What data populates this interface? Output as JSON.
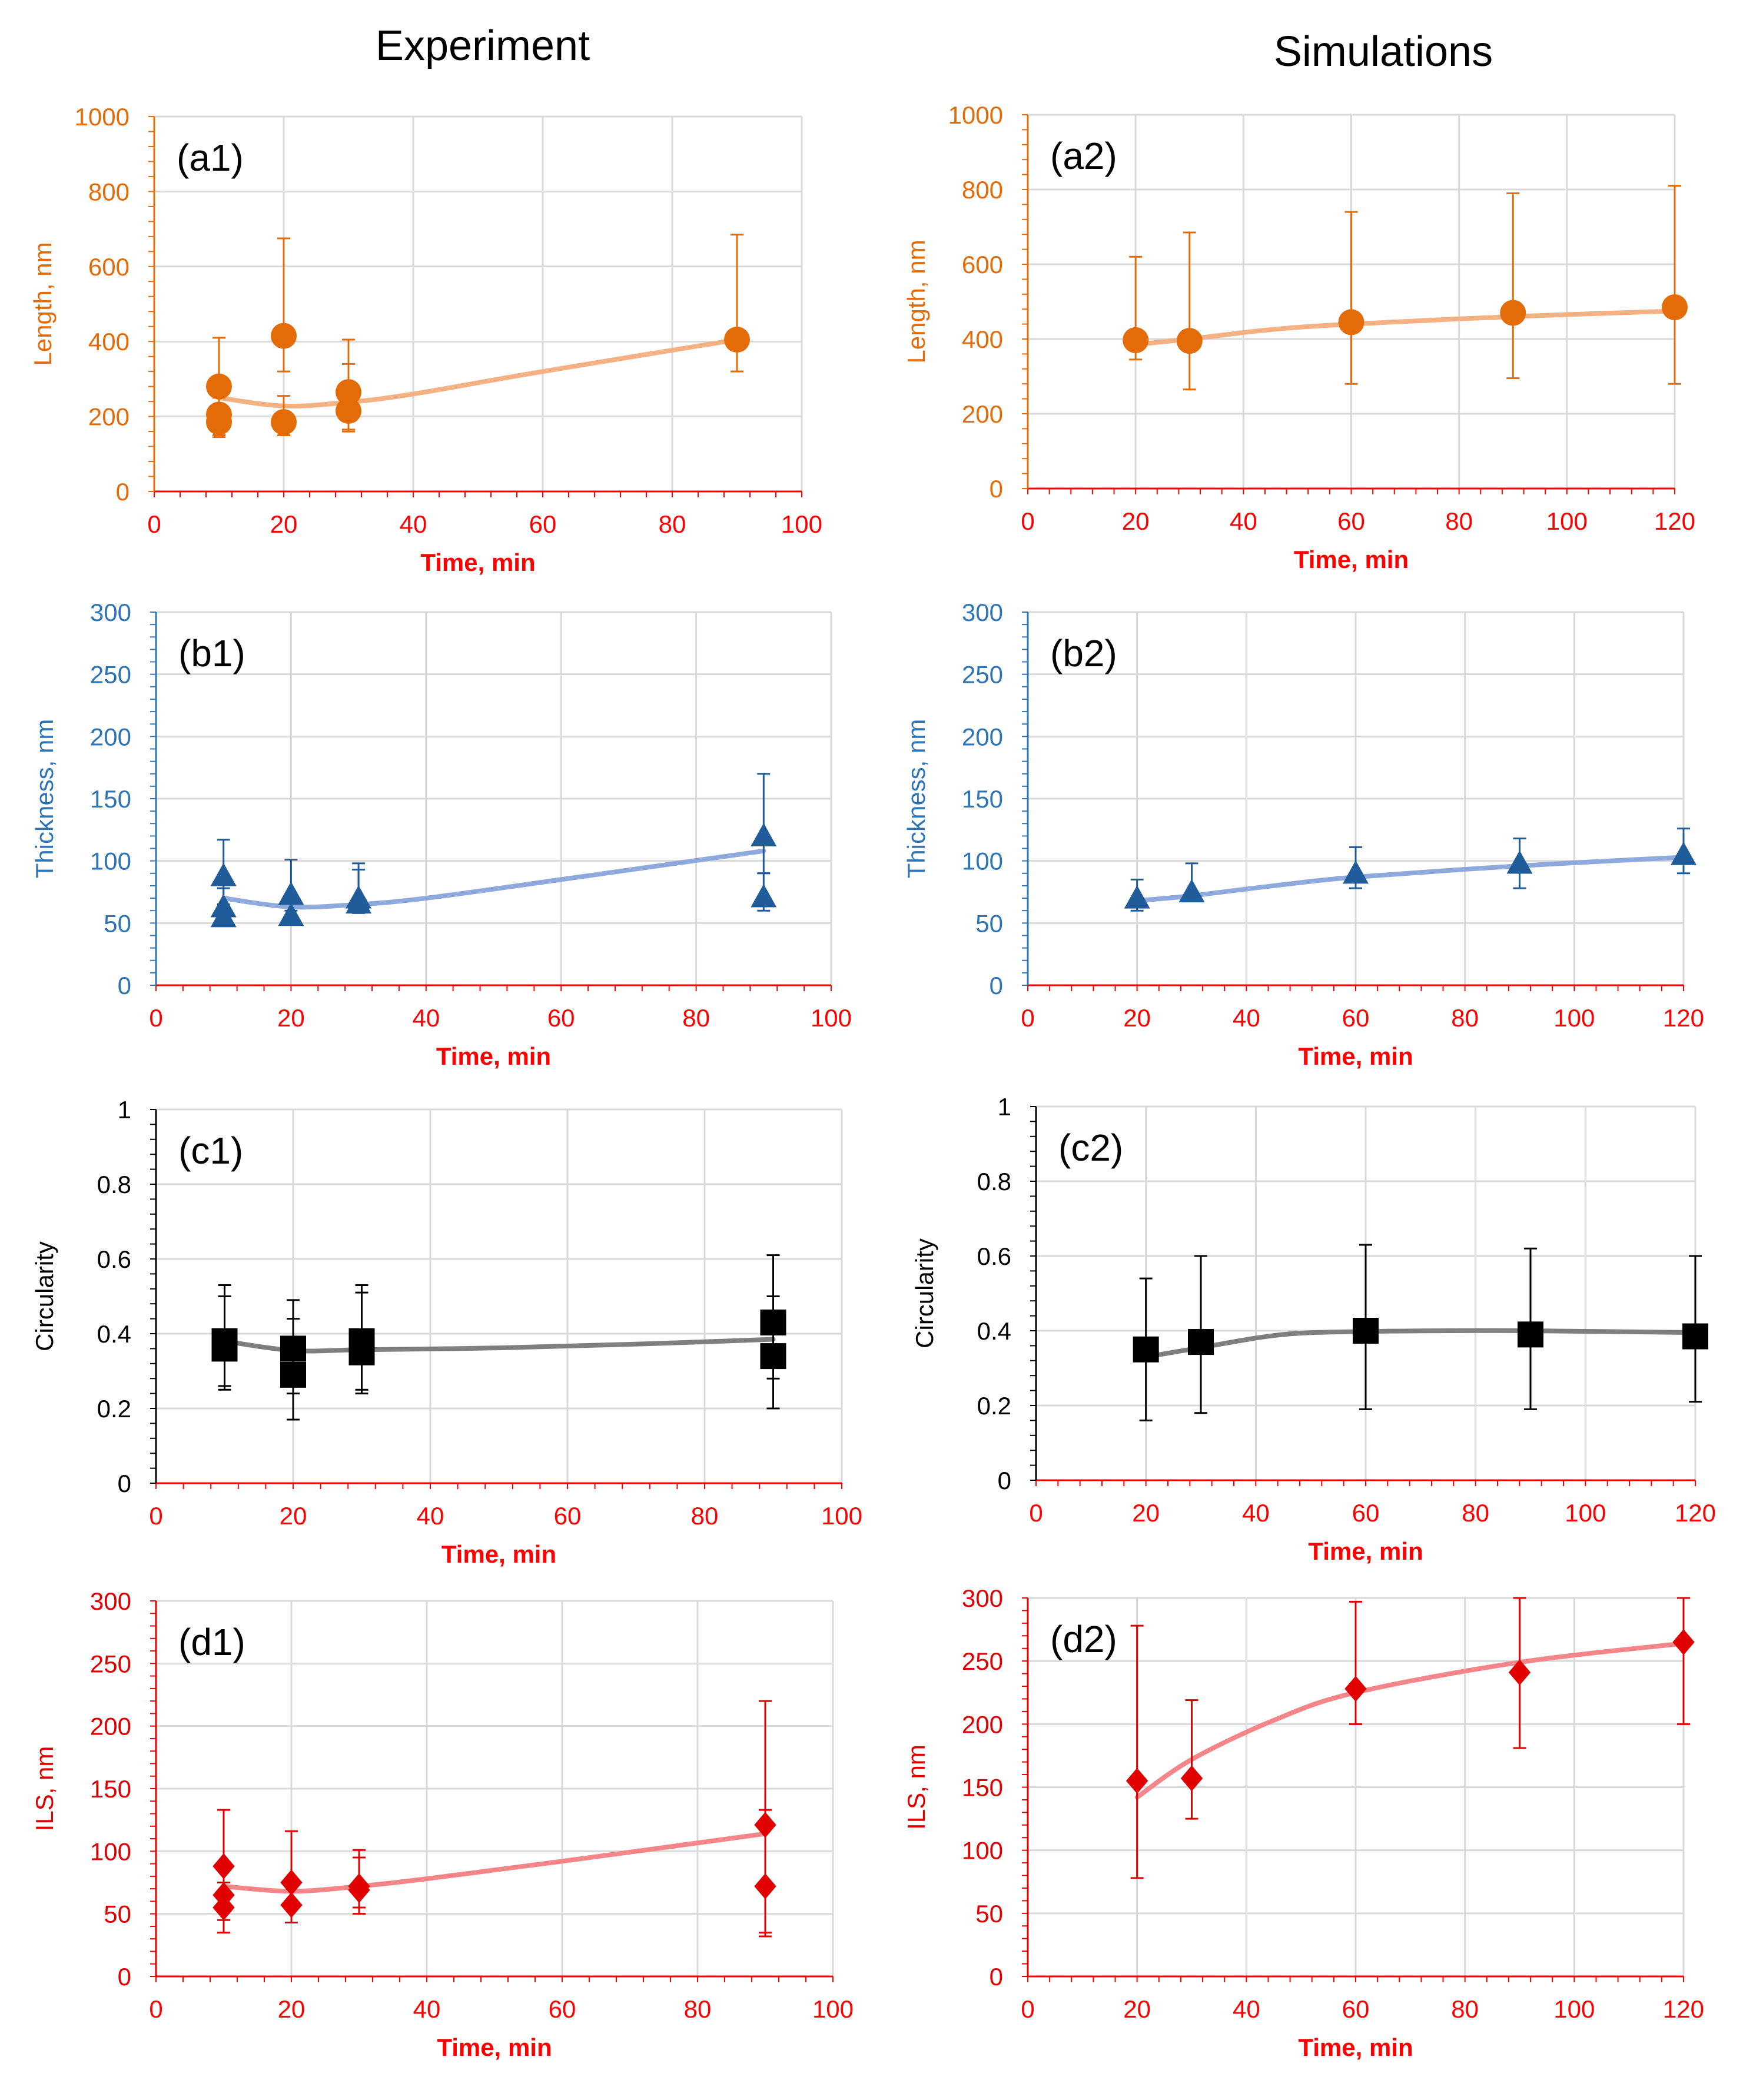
{
  "headers": {
    "left": "Experiment",
    "right": "Simulations"
  },
  "chart_data": [
    {
      "id": "a1",
      "type": "scatter",
      "panel_label": "(a1)",
      "xlabel": "Time, min",
      "ylabel": "Length, nm",
      "xlim": [
        0,
        100
      ],
      "xticks": [
        0,
        20,
        40,
        60,
        80,
        100
      ],
      "ylim": [
        0,
        1000
      ],
      "yticks": [
        0,
        200,
        400,
        600,
        800,
        1000
      ],
      "color": "#E36C09",
      "line_color": "#F4B183",
      "axis_color": "#FF0000",
      "ylabel_color": "#E36C09",
      "ytick_color": "#E36C09",
      "marker": "circle",
      "points": [
        {
          "x": 10,
          "y": 280,
          "lo": 150,
          "hi": 410
        },
        {
          "x": 10,
          "y": 205,
          "lo": 160,
          "hi": 250
        },
        {
          "x": 10,
          "y": 185,
          "lo": 145,
          "hi": 225
        },
        {
          "x": 20,
          "y": 415,
          "lo": 320,
          "hi": 675
        },
        {
          "x": 20,
          "y": 185,
          "lo": 150,
          "hi": 255
        },
        {
          "x": 30,
          "y": 265,
          "lo": 165,
          "hi": 405
        },
        {
          "x": 30,
          "y": 215,
          "lo": 160,
          "hi": 340
        },
        {
          "x": 90,
          "y": 405,
          "lo": 320,
          "hi": 685
        }
      ],
      "trend": {
        "x": [
          10,
          20,
          30,
          40,
          60,
          90
        ],
        "y": [
          250,
          228,
          238,
          260,
          320,
          405
        ]
      }
    },
    {
      "id": "a2",
      "type": "scatter",
      "panel_label": "(a2)",
      "xlabel": "Time, min",
      "ylabel": "Length, nm",
      "xlim": [
        0,
        120
      ],
      "xticks": [
        0,
        20,
        40,
        60,
        80,
        100,
        120
      ],
      "ylim": [
        0,
        1000
      ],
      "yticks": [
        0,
        200,
        400,
        600,
        800,
        1000
      ],
      "color": "#E36C09",
      "line_color": "#F4B183",
      "axis_color": "#FF0000",
      "ylabel_color": "#E36C09",
      "ytick_color": "#E36C09",
      "marker": "circle",
      "points": [
        {
          "x": 20,
          "y": 397,
          "lo": 345,
          "hi": 620
        },
        {
          "x": 30,
          "y": 395,
          "lo": 265,
          "hi": 685
        },
        {
          "x": 60,
          "y": 445,
          "lo": 280,
          "hi": 740
        },
        {
          "x": 90,
          "y": 470,
          "lo": 295,
          "hi": 790
        },
        {
          "x": 120,
          "y": 485,
          "lo": 280,
          "hi": 810
        }
      ],
      "trend": {
        "x": [
          20,
          30,
          45,
          60,
          90,
          120
        ],
        "y": [
          385,
          400,
          425,
          440,
          460,
          475
        ]
      }
    },
    {
      "id": "b1",
      "type": "scatter",
      "panel_label": "(b1)",
      "xlabel": "Time, min",
      "ylabel": "Thickness, nm",
      "xlim": [
        0,
        100
      ],
      "xticks": [
        0,
        20,
        40,
        60,
        80,
        100
      ],
      "ylim": [
        0,
        300
      ],
      "yticks": [
        0,
        50,
        100,
        150,
        200,
        250,
        300
      ],
      "color": "#1F5C99",
      "line_color": "#8EA9DB",
      "axis_color": "#FF0000",
      "ylabel_color": "#2E75B6",
      "ytick_color": "#2E75B6",
      "marker": "triangle",
      "points": [
        {
          "x": 10,
          "y": 88,
          "lo": 60,
          "hi": 117
        },
        {
          "x": 10,
          "y": 63,
          "lo": 52,
          "hi": 78
        },
        {
          "x": 10,
          "y": 55,
          "lo": 48,
          "hi": 65
        },
        {
          "x": 20,
          "y": 73,
          "lo": 60,
          "hi": 101
        },
        {
          "x": 20,
          "y": 56,
          "lo": 50,
          "hi": 66
        },
        {
          "x": 30,
          "y": 70,
          "lo": 58,
          "hi": 98
        },
        {
          "x": 30,
          "y": 66,
          "lo": 60,
          "hi": 93
        },
        {
          "x": 90,
          "y": 120,
          "lo": 90,
          "hi": 170
        },
        {
          "x": 90,
          "y": 71,
          "lo": 60,
          "hi": 90
        }
      ],
      "trend": {
        "x": [
          10,
          20,
          30,
          40,
          60,
          90
        ],
        "y": [
          70,
          63,
          65,
          70,
          85,
          108
        ]
      }
    },
    {
      "id": "b2",
      "type": "scatter",
      "panel_label": "(b2)",
      "xlabel": "Time, min",
      "ylabel": "Thickness, nm",
      "xlim": [
        0,
        120
      ],
      "xticks": [
        0,
        20,
        40,
        60,
        80,
        100,
        120
      ],
      "ylim": [
        0,
        300
      ],
      "yticks": [
        0,
        50,
        100,
        150,
        200,
        250,
        300
      ],
      "color": "#1F5C99",
      "line_color": "#8EA9DB",
      "axis_color": "#FF0000",
      "ylabel_color": "#2E75B6",
      "ytick_color": "#2E75B6",
      "marker": "triangle",
      "points": [
        {
          "x": 20,
          "y": 70,
          "lo": 60,
          "hi": 85
        },
        {
          "x": 30,
          "y": 75,
          "lo": 68,
          "hi": 98
        },
        {
          "x": 60,
          "y": 90,
          "lo": 78,
          "hi": 111
        },
        {
          "x": 90,
          "y": 98,
          "lo": 78,
          "hi": 118
        },
        {
          "x": 120,
          "y": 105,
          "lo": 90,
          "hi": 126
        }
      ],
      "trend": {
        "x": [
          20,
          30,
          45,
          60,
          90,
          120
        ],
        "y": [
          68,
          72,
          80,
          87,
          96,
          103
        ]
      }
    },
    {
      "id": "c1",
      "type": "scatter",
      "panel_label": "(c1)",
      "xlabel": "Time, min",
      "ylabel": "Circularity",
      "xlim": [
        0,
        100
      ],
      "xticks": [
        0,
        20,
        40,
        60,
        80,
        100
      ],
      "ylim": [
        0,
        1
      ],
      "yticks": [
        0,
        0.2,
        0.4,
        0.6,
        0.8,
        1
      ],
      "ytick_labels": [
        "0",
        "0.2",
        "0.4",
        "0.6",
        "0.8",
        "1"
      ],
      "color": "#000000",
      "line_color": "#7F7F7F",
      "axis_color": "#FF0000",
      "ylabel_color": "#000000",
      "ytick_color": "#000000",
      "marker": "square",
      "points": [
        {
          "x": 10,
          "y": 0.38,
          "lo": 0.26,
          "hi": 0.53
        },
        {
          "x": 10,
          "y": 0.36,
          "lo": 0.25,
          "hi": 0.5
        },
        {
          "x": 20,
          "y": 0.36,
          "lo": 0.24,
          "hi": 0.49
        },
        {
          "x": 20,
          "y": 0.29,
          "lo": 0.17,
          "hi": 0.44
        },
        {
          "x": 30,
          "y": 0.38,
          "lo": 0.25,
          "hi": 0.53
        },
        {
          "x": 30,
          "y": 0.35,
          "lo": 0.24,
          "hi": 0.51
        },
        {
          "x": 90,
          "y": 0.43,
          "lo": 0.28,
          "hi": 0.61
        },
        {
          "x": 90,
          "y": 0.34,
          "lo": 0.2,
          "hi": 0.5
        }
      ],
      "trend": {
        "x": [
          10,
          20,
          30,
          50,
          70,
          90
        ],
        "y": [
          0.38,
          0.355,
          0.357,
          0.362,
          0.372,
          0.385
        ]
      }
    },
    {
      "id": "c2",
      "type": "scatter",
      "panel_label": "(c2)",
      "xlabel": "Time, min",
      "ylabel": "Circularity",
      "xlim": [
        0,
        120
      ],
      "xticks": [
        0,
        20,
        40,
        60,
        80,
        100,
        120
      ],
      "ylim": [
        0,
        1
      ],
      "yticks": [
        0,
        0.2,
        0.4,
        0.6,
        0.8,
        1
      ],
      "ytick_labels": [
        "0",
        "0.2",
        "0.4",
        "0.6",
        "0.8",
        "1"
      ],
      "color": "#000000",
      "line_color": "#7F7F7F",
      "axis_color": "#FF0000",
      "ylabel_color": "#000000",
      "ytick_color": "#000000",
      "marker": "square",
      "points": [
        {
          "x": 20,
          "y": 0.35,
          "lo": 0.16,
          "hi": 0.54
        },
        {
          "x": 30,
          "y": 0.37,
          "lo": 0.18,
          "hi": 0.6
        },
        {
          "x": 60,
          "y": 0.4,
          "lo": 0.19,
          "hi": 0.63
        },
        {
          "x": 90,
          "y": 0.39,
          "lo": 0.19,
          "hi": 0.62
        },
        {
          "x": 120,
          "y": 0.385,
          "lo": 0.21,
          "hi": 0.6
        }
      ],
      "trend": {
        "x": [
          20,
          30,
          45,
          60,
          75,
          90,
          120
        ],
        "y": [
          0.33,
          0.355,
          0.39,
          0.398,
          0.4,
          0.4,
          0.395
        ]
      }
    },
    {
      "id": "d1",
      "type": "scatter",
      "panel_label": "(d1)",
      "xlabel": "Time, min",
      "ylabel": "ILS, nm",
      "xlim": [
        0,
        100
      ],
      "xticks": [
        0,
        20,
        40,
        60,
        80,
        100
      ],
      "ylim": [
        0,
        300
      ],
      "yticks": [
        0,
        50,
        100,
        150,
        200,
        250,
        300
      ],
      "color": "#E00000",
      "line_color": "#F4868A",
      "axis_color": "#FF0000",
      "ylabel_color": "#E00000",
      "ytick_color": "#E00000",
      "marker": "diamond",
      "points": [
        {
          "x": 10,
          "y": 88,
          "lo": 55,
          "hi": 133
        },
        {
          "x": 10,
          "y": 65,
          "lo": 45,
          "hi": 90
        },
        {
          "x": 10,
          "y": 55,
          "lo": 35,
          "hi": 75
        },
        {
          "x": 20,
          "y": 75,
          "lo": 55,
          "hi": 116
        },
        {
          "x": 20,
          "y": 57,
          "lo": 43,
          "hi": 75
        },
        {
          "x": 30,
          "y": 72,
          "lo": 55,
          "hi": 101
        },
        {
          "x": 30,
          "y": 69,
          "lo": 50,
          "hi": 95
        },
        {
          "x": 90,
          "y": 121,
          "lo": 35,
          "hi": 220
        },
        {
          "x": 90,
          "y": 72,
          "lo": 32,
          "hi": 133
        }
      ],
      "trend": {
        "x": [
          10,
          20,
          30,
          40,
          60,
          90
        ],
        "y": [
          72,
          68,
          72,
          78,
          92,
          114
        ]
      }
    },
    {
      "id": "d2",
      "type": "scatter",
      "panel_label": "(d2)",
      "xlabel": "Time, min",
      "ylabel": "ILS, nm",
      "xlim": [
        0,
        120
      ],
      "xticks": [
        0,
        20,
        40,
        60,
        80,
        100,
        120
      ],
      "ylim": [
        0,
        300
      ],
      "yticks": [
        0,
        50,
        100,
        150,
        200,
        250,
        300
      ],
      "color": "#E00000",
      "line_color": "#F4868A",
      "axis_color": "#FF0000",
      "ylabel_color": "#E00000",
      "ytick_color": "#E00000",
      "marker": "diamond",
      "points": [
        {
          "x": 20,
          "y": 155,
          "lo": 78,
          "hi": 278
        },
        {
          "x": 30,
          "y": 157,
          "lo": 125,
          "hi": 219
        },
        {
          "x": 60,
          "y": 228,
          "lo": 200,
          "hi": 297
        },
        {
          "x": 90,
          "y": 241,
          "lo": 181,
          "hi": 300
        },
        {
          "x": 120,
          "y": 265,
          "lo": 200,
          "hi": 300
        }
      ],
      "trend": {
        "x": [
          20,
          30,
          45,
          60,
          90,
          120
        ],
        "y": [
          142,
          172,
          203,
          225,
          249,
          264
        ]
      }
    }
  ]
}
